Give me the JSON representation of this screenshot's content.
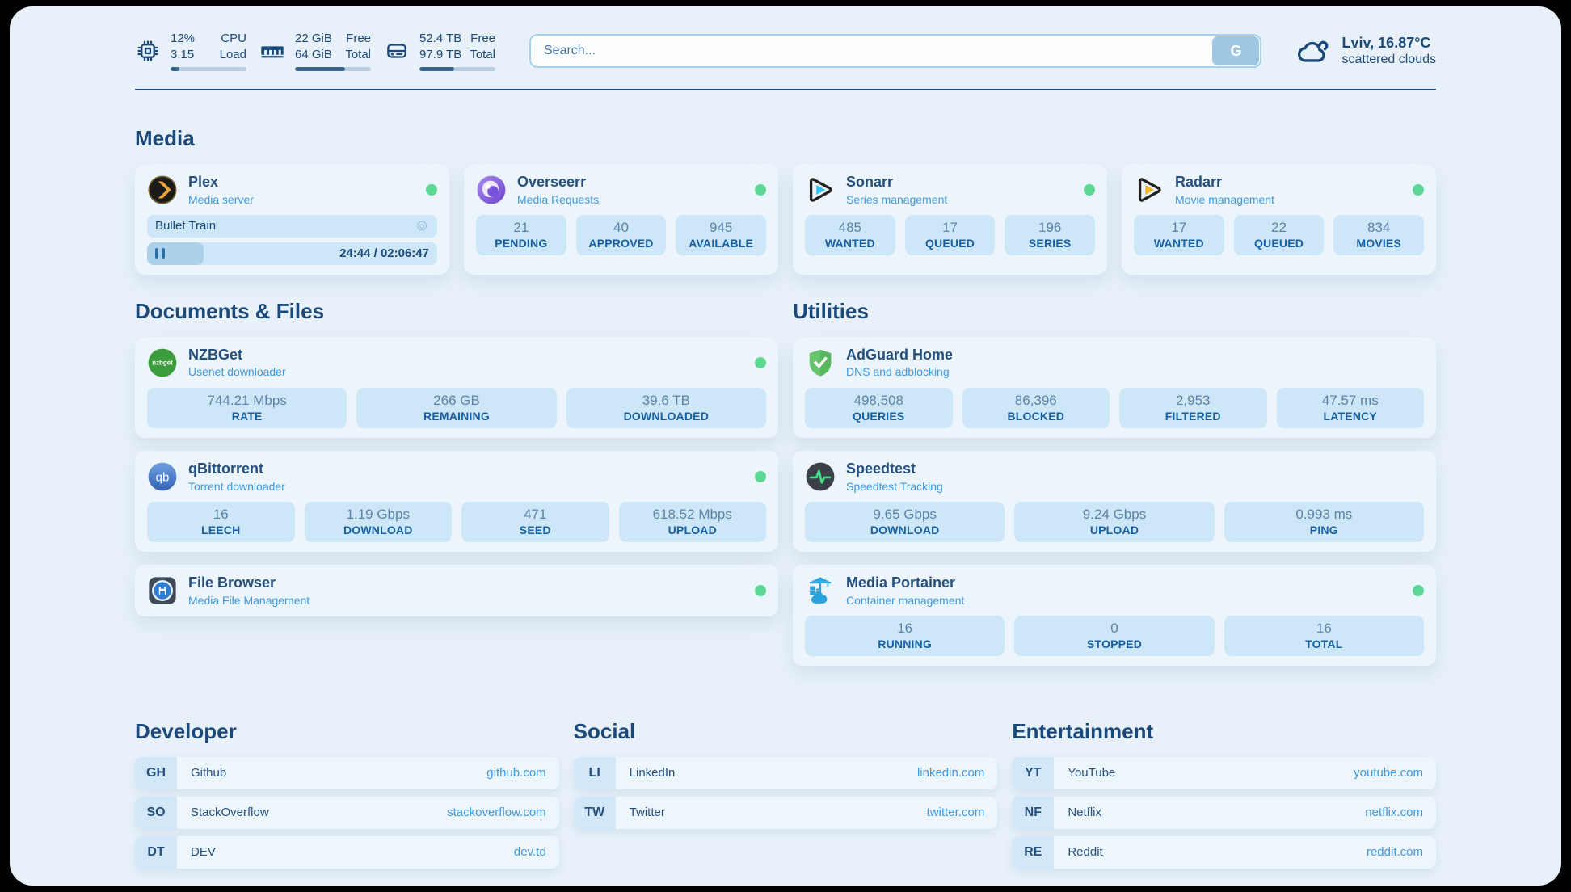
{
  "theme": {
    "accent": "#1b4a7a",
    "subtitle_blue": "#3f9ade",
    "status_green": "#5bd892",
    "stat_box_bg": "#cde7f8",
    "card_bg": "#ecf4fc",
    "page_bg": "#e8f1fa"
  },
  "icons": {
    "cpu": "cpu-chip-icon",
    "ram": "ram-icon",
    "disk": "hard-drive-icon",
    "weather": "cloud-icon",
    "plex_row": "gear-icon",
    "playback": "pause-icon"
  },
  "topbar": {
    "cpu": {
      "value1": "12%",
      "value2": "3.15",
      "label1": "CPU",
      "label2": "Load",
      "progress": "12%"
    },
    "ram": {
      "value1": "22 GiB",
      "value2": "64 GiB",
      "label1": "Free",
      "label2": "Total",
      "progress": "66%"
    },
    "disk": {
      "value1": "52.4 TB",
      "value2": "97.9 TB",
      "label1": "Free",
      "label2": "Total",
      "progress": "46%"
    },
    "search": {
      "placeholder": "Search...",
      "button_label": "G"
    },
    "weather": {
      "location_temp": "Lviv, 16.87°C",
      "condition": "scattered clouds"
    }
  },
  "media": {
    "title": "Media",
    "plex": {
      "name": "Plex",
      "desc": "Media server",
      "now_playing": "Bullet Train",
      "time": "24:44 / 02:06:47",
      "progress": "19.5%"
    },
    "overseerr": {
      "name": "Overseerr",
      "desc": "Media Requests",
      "stats": [
        {
          "value": "21",
          "label": "PENDING"
        },
        {
          "value": "40",
          "label": "APPROVED"
        },
        {
          "value": "945",
          "label": "AVAILABLE"
        }
      ]
    },
    "sonarr": {
      "name": "Sonarr",
      "desc": "Series management",
      "stats": [
        {
          "value": "485",
          "label": "WANTED"
        },
        {
          "value": "17",
          "label": "QUEUED"
        },
        {
          "value": "196",
          "label": "SERIES"
        }
      ]
    },
    "radarr": {
      "name": "Radarr",
      "desc": "Movie management",
      "stats": [
        {
          "value": "17",
          "label": "WANTED"
        },
        {
          "value": "22",
          "label": "QUEUED"
        },
        {
          "value": "834",
          "label": "MOVIES"
        }
      ]
    }
  },
  "documents": {
    "title": "Documents & Files",
    "nzbget": {
      "name": "NZBGet",
      "desc": "Usenet downloader",
      "stats": [
        {
          "value": "744.21 Mbps",
          "label": "RATE"
        },
        {
          "value": "266 GB",
          "label": "REMAINING"
        },
        {
          "value": "39.6 TB",
          "label": "DOWNLOADED"
        }
      ]
    },
    "qbittorrent": {
      "name": "qBittorrent",
      "desc": "Torrent downloader",
      "stats": [
        {
          "value": "16",
          "label": "LEECH"
        },
        {
          "value": "1.19 Gbps",
          "label": "DOWNLOAD"
        },
        {
          "value": "471",
          "label": "SEED"
        },
        {
          "value": "618.52 Mbps",
          "label": "UPLOAD"
        }
      ]
    },
    "filebrowser": {
      "name": "File Browser",
      "desc": "Media File Management"
    }
  },
  "utilities": {
    "title": "Utilities",
    "adguard": {
      "name": "AdGuard Home",
      "desc": "DNS and adblocking",
      "stats": [
        {
          "value": "498,508",
          "label": "QUERIES"
        },
        {
          "value": "86,396",
          "label": "BLOCKED"
        },
        {
          "value": "2,953",
          "label": "FILTERED"
        },
        {
          "value": "47.57 ms",
          "label": "LATENCY"
        }
      ]
    },
    "speedtest": {
      "name": "Speedtest",
      "desc": "Speedtest Tracking",
      "stats": [
        {
          "value": "9.65 Gbps",
          "label": "DOWNLOAD"
        },
        {
          "value": "9.24 Gbps",
          "label": "UPLOAD"
        },
        {
          "value": "0.993 ms",
          "label": "PING"
        }
      ]
    },
    "portainer": {
      "name": "Media Portainer",
      "desc": "Container management",
      "stats": [
        {
          "value": "16",
          "label": "RUNNING"
        },
        {
          "value": "0",
          "label": "STOPPED"
        },
        {
          "value": "16",
          "label": "TOTAL"
        }
      ]
    }
  },
  "links": {
    "developer": {
      "title": "Developer",
      "items": [
        {
          "abbr": "GH",
          "name": "Github",
          "url": "github.com"
        },
        {
          "abbr": "SO",
          "name": "StackOverflow",
          "url": "stackoverflow.com"
        },
        {
          "abbr": "DT",
          "name": "DEV",
          "url": "dev.to"
        }
      ]
    },
    "social": {
      "title": "Social",
      "items": [
        {
          "abbr": "LI",
          "name": "LinkedIn",
          "url": "linkedin.com"
        },
        {
          "abbr": "TW",
          "name": "Twitter",
          "url": "twitter.com"
        }
      ]
    },
    "entertainment": {
      "title": "Entertainment",
      "items": [
        {
          "abbr": "YT",
          "name": "YouTube",
          "url": "youtube.com"
        },
        {
          "abbr": "NF",
          "name": "Netflix",
          "url": "netflix.com"
        },
        {
          "abbr": "RE",
          "name": "Reddit",
          "url": "reddit.com"
        }
      ]
    }
  }
}
